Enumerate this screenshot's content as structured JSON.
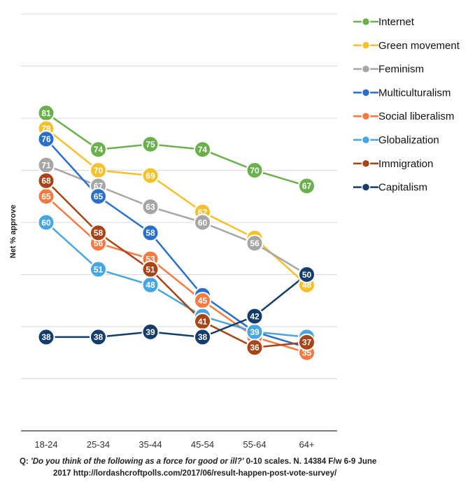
{
  "chart_data": {
    "type": "line",
    "ylabel": "Net % approve",
    "categories": [
      "18-24",
      "25-34",
      "35-44",
      "45-54",
      "55-64",
      "64+"
    ],
    "ylim": [
      20,
      100
    ],
    "grid": true,
    "legend": "top-right",
    "series": [
      {
        "name": "Internet",
        "color": "#6ab04c",
        "values": [
          81,
          74,
          75,
          74,
          70,
          67
        ]
      },
      {
        "name": "Green movement",
        "color": "#f5c02a",
        "values": [
          78,
          70,
          69,
          62,
          57,
          48
        ]
      },
      {
        "name": "Feminism",
        "color": "#a6a6a6",
        "values": [
          71,
          67,
          63,
          60,
          56,
          50
        ]
      },
      {
        "name": "Multiculturalism",
        "color": "#2a6fc9",
        "values": [
          76,
          65,
          58,
          46,
          39,
          36
        ]
      },
      {
        "name": "Social liberalism",
        "color": "#f57a42",
        "values": [
          65,
          56,
          53,
          45,
          38,
          35
        ]
      },
      {
        "name": "Globalization",
        "color": "#47a6df",
        "values": [
          60,
          51,
          48,
          42,
          39,
          38
        ]
      },
      {
        "name": "Immigration",
        "color": "#a84416",
        "values": [
          68,
          58,
          51,
          41,
          36,
          37
        ]
      },
      {
        "name": "Capitalism",
        "color": "#143d6b",
        "values": [
          38,
          38,
          39,
          38,
          42,
          50
        ]
      }
    ]
  },
  "footnote": {
    "q_prefix": "Q: ",
    "question": "'Do you think of the following as a force for good or ill?'",
    "line1_rest": " 0-10 scales.  N. 14384 F/w 6-9 June",
    "line2": "2017 http://lordashcroftpolls.com/2017/06/result-happen-post-vote-survey/"
  }
}
